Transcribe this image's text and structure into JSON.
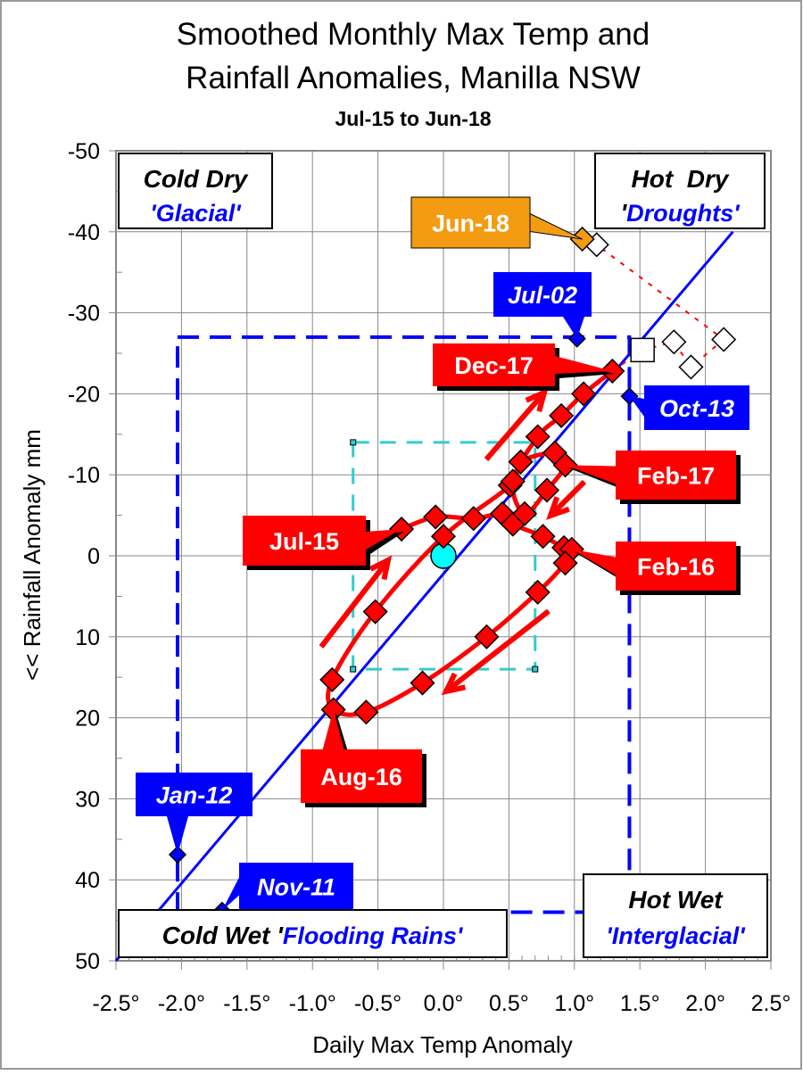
{
  "chart_data": {
    "type": "scatter",
    "title": "Smoothed Monthly Max Temp and Rainfall Anomalies, Manilla NSW",
    "title_lines": [
      "Smoothed Monthly Max Temp and",
      "Rainfall Anomalies, Manilla NSW"
    ],
    "subtitle": "Jul-15 to Jun-18",
    "xlabel": "Daily Max Temp Anomaly",
    "ylabel": "<< Rainfall Anomaly mm",
    "xlim": [
      -2.5,
      2.5
    ],
    "ylim": [
      -50,
      50
    ],
    "y_inverted": true,
    "grid": true,
    "x_ticks": [
      "-2.5°",
      "-2.0°",
      "-1.5°",
      "-1.0°",
      "-0.5°",
      "0.0°",
      "0.5°",
      "1.0°",
      "1.5°",
      "2.0°",
      "2.5°"
    ],
    "x_tick_values": [
      -2.5,
      -2.0,
      -1.5,
      -1.0,
      -0.5,
      0.0,
      0.5,
      1.0,
      1.5,
      2.0,
      2.5
    ],
    "y_ticks": [
      "-50",
      "-40",
      "-30",
      "-20",
      "-10",
      "0",
      "10",
      "20",
      "30",
      "40",
      "50"
    ],
    "y_tick_values": [
      -50,
      -40,
      -30,
      -20,
      -10,
      0,
      10,
      20,
      30,
      40,
      50
    ],
    "colors": {
      "main_series": "#ff0000",
      "recent_series": "#ffffff",
      "latest": "#f39c12",
      "records": "#0000ff",
      "origin": "#00ffff",
      "limits_box": "#0000ff",
      "inner_box": "#33cccc"
    },
    "series": [
      {
        "key": "main",
        "points": [
          [
            -0.32,
            -3.3
          ],
          [
            -0.06,
            -4.8
          ],
          [
            0.23,
            -4.6
          ],
          [
            0.45,
            -5.2
          ],
          [
            0.53,
            -3.9
          ],
          [
            0.76,
            -2.4
          ],
          [
            0.92,
            -1.0
          ],
          [
            0.98,
            -0.8
          ],
          [
            0.93,
            0.9
          ],
          [
            0.72,
            4.5
          ],
          [
            0.33,
            10.0
          ],
          [
            -0.16,
            15.7
          ],
          [
            -0.59,
            19.3
          ],
          [
            -0.84,
            19.0
          ],
          [
            -0.85,
            15.3
          ],
          [
            -0.52,
            6.9
          ],
          [
            0.0,
            -2.4
          ],
          [
            0.51,
            -8.7
          ],
          [
            0.59,
            -11.6
          ],
          [
            0.85,
            -12.7
          ],
          [
            0.93,
            -11.2
          ],
          [
            0.79,
            -8.1
          ],
          [
            0.62,
            -5.2
          ],
          [
            0.53,
            -9.2
          ],
          [
            0.72,
            -14.7
          ],
          [
            0.9,
            -17.3
          ],
          [
            1.07,
            -20.0
          ],
          [
            1.29,
            -22.8
          ]
        ]
      },
      {
        "key": "recent",
        "points": [
          [
            1.52,
            -25.4
          ],
          [
            1.76,
            -26.4
          ],
          [
            1.89,
            -23.3
          ],
          [
            2.14,
            -26.7
          ],
          [
            1.17,
            -38.4
          ]
        ]
      },
      {
        "key": "latest",
        "points": [
          [
            1.06,
            -39.1
          ]
        ]
      },
      {
        "key": "records",
        "points": [
          [
            1.02,
            -26.8
          ],
          [
            1.42,
            -19.7
          ],
          [
            -2.03,
            36.9
          ],
          [
            -1.69,
            43.8
          ]
        ]
      }
    ],
    "origin_point": [
      0,
      0
    ],
    "trend_line": [
      [
        -2.5,
        50
      ],
      [
        2.21,
        -40
      ]
    ],
    "limits_box": {
      "x": [
        -2.03,
        1.42
      ],
      "y": [
        -27,
        44
      ]
    },
    "inner_box": {
      "x": [
        -0.69,
        0.7
      ],
      "y": [
        -14,
        14
      ]
    },
    "annotations": [
      {
        "text": "Jun-18",
        "point": [
          1.06,
          -39.1
        ],
        "style": "latest"
      },
      {
        "text": "Jul-02",
        "point": [
          1.02,
          -26.8
        ],
        "style": "record"
      },
      {
        "text": "Dec-17",
        "point": [
          1.29,
          -22.8
        ],
        "style": "main"
      },
      {
        "text": "Oct-13",
        "point": [
          1.42,
          -19.7
        ],
        "style": "record"
      },
      {
        "text": "Feb-17",
        "point": [
          0.93,
          -11.2
        ],
        "style": "main"
      },
      {
        "text": "Jul-15",
        "point": [
          -0.32,
          -3.3
        ],
        "style": "main"
      },
      {
        "text": "Feb-16",
        "point": [
          0.98,
          -0.8
        ],
        "style": "main"
      },
      {
        "text": "Aug-16",
        "point": [
          -0.84,
          19.0
        ],
        "style": "main"
      },
      {
        "text": "Jan-12",
        "point": [
          -2.03,
          36.9
        ],
        "style": "record"
      },
      {
        "text": "Nov-11",
        "point": [
          -1.69,
          43.8
        ],
        "style": "record"
      }
    ],
    "quadrants": {
      "cold_dry": {
        "title": "Cold Dry",
        "name": "'Glacial'"
      },
      "hot_dry": {
        "title": "Hot  Dry",
        "name_prefix": "'",
        "name": "Droughts'"
      },
      "cold_wet": {
        "title": "Cold Wet '",
        "name": "Flooding Rains'"
      },
      "hot_wet": {
        "title": "Hot Wet",
        "name": "'Interglacial'"
      }
    }
  }
}
